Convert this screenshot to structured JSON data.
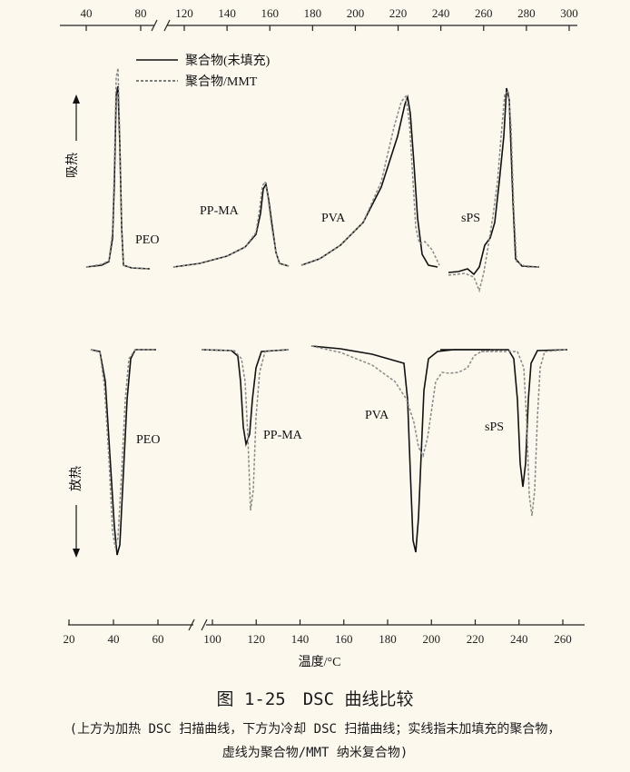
{
  "chart_data": {
    "type": "line",
    "top_axis": {
      "segment1_ticks": [
        "40",
        "80"
      ],
      "segment2_ticks": [
        "120",
        "140",
        "160",
        "180",
        "200",
        "220",
        "240",
        "260",
        "280",
        "300"
      ]
    },
    "bottom_axis": {
      "segment1_ticks": [
        "20",
        "40",
        "60"
      ],
      "segment2_ticks": [
        "100",
        "120",
        "140",
        "160",
        "180",
        "200",
        "220",
        "240",
        "260"
      ],
      "label": "温度/°C"
    },
    "legend": [
      {
        "label": "聚合物(未填充)",
        "style": "solid"
      },
      {
        "label": "聚合物/MMT",
        "style": "dashed"
      }
    ],
    "ylabel_top": "吸热",
    "ylabel_bottom": "放热",
    "panels": {
      "heating": [
        {
          "name": "PEO",
          "peak_solid": 62,
          "peak_dashed": 63,
          "x_range": [
            30,
            85
          ]
        },
        {
          "name": "PP-MA",
          "peak_solid": 159,
          "peak_dashed": 158,
          "x_range": [
            120,
            175
          ]
        },
        {
          "name": "PVA",
          "peak_solid": 225,
          "peak_dashed": 223,
          "x_range": [
            180,
            245
          ]
        },
        {
          "name": "sPS",
          "peak_solid": 270,
          "peak_dashed": 270,
          "x_range": [
            245,
            295
          ]
        }
      ],
      "cooling": [
        {
          "name": "PEO",
          "peak_solid": 41,
          "peak_dashed": 42,
          "x_range": [
            30,
            70
          ]
        },
        {
          "name": "PP-MA",
          "peak_solid": 115,
          "peak_dashed": 117,
          "x_range": [
            95,
            140
          ]
        },
        {
          "name": "PVA",
          "peak_solid": 193,
          "peak_dashed": 196,
          "x_range": [
            145,
            210
          ]
        },
        {
          "name": "sPS",
          "peak_solid": 242,
          "peak_dashed": 245,
          "x_range": [
            210,
            255
          ]
        }
      ]
    }
  },
  "caption": {
    "title": "图 1-25　DSC 曲线比较",
    "line1": "(上方为加热 DSC 扫描曲线，下方为冷却 DSC 扫描曲线；实线指未加填充的聚合物，",
    "line2": "虚线为聚合物/MMT 纳米复合物)"
  }
}
